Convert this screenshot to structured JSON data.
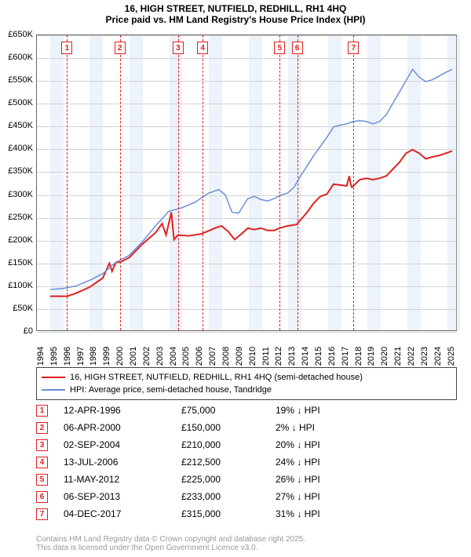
{
  "title": {
    "line1": "16, HIGH STREET, NUTFIELD, REDHILL, RH1 4HQ",
    "line2": "Price paid vs. HM Land Registry's House Price Index (HPI)",
    "fontsize": 12
  },
  "chart": {
    "type": "line",
    "background_color": "#ffffff",
    "border_color": "#666666",
    "grid_color": "#d3d3d3",
    "shade_color": "rgba(200,220,240,0.35)",
    "shade_years": [
      1995,
      1998,
      2001,
      2004,
      2007,
      2010,
      2013,
      2016,
      2019,
      2022,
      2025
    ],
    "x_min": 1994,
    "x_max": 2025.8,
    "y_min": 0,
    "y_max": 650000,
    "y_ticks": [
      0,
      50000,
      100000,
      150000,
      200000,
      250000,
      300000,
      350000,
      400000,
      450000,
      500000,
      550000,
      600000,
      650000
    ],
    "y_tick_labels": [
      "£0",
      "£50K",
      "£100K",
      "£150K",
      "£200K",
      "£250K",
      "£300K",
      "£350K",
      "£400K",
      "£450K",
      "£500K",
      "£550K",
      "£600K",
      "£650K"
    ],
    "x_ticks": [
      1994,
      1995,
      1996,
      1997,
      1998,
      1999,
      2000,
      2001,
      2002,
      2003,
      2004,
      2005,
      2006,
      2007,
      2008,
      2009,
      2010,
      2011,
      2012,
      2013,
      2014,
      2015,
      2016,
      2017,
      2018,
      2019,
      2020,
      2021,
      2022,
      2023,
      2024,
      2025
    ],
    "label_fontsize": 11,
    "series": [
      {
        "name": "price_paid",
        "color": "#e02020",
        "width": 2,
        "points": [
          [
            1995.0,
            75000
          ],
          [
            1996.3,
            75000
          ],
          [
            1996.3,
            75000
          ],
          [
            1997.0,
            82000
          ],
          [
            1998.0,
            95000
          ],
          [
            1999.0,
            115000
          ],
          [
            1999.5,
            148000
          ],
          [
            1999.7,
            130000
          ],
          [
            2000.0,
            150000
          ],
          [
            2000.3,
            150000
          ],
          [
            2001.0,
            160000
          ],
          [
            2002.0,
            190000
          ],
          [
            2003.0,
            215000
          ],
          [
            2003.5,
            235000
          ],
          [
            2003.8,
            210000
          ],
          [
            2004.2,
            260000
          ],
          [
            2004.4,
            200000
          ],
          [
            2004.7,
            210000
          ],
          [
            2005.5,
            208000
          ],
          [
            2006.5,
            212500
          ],
          [
            2007.5,
            225000
          ],
          [
            2008.0,
            230000
          ],
          [
            2008.5,
            218000
          ],
          [
            2009.0,
            200000
          ],
          [
            2009.5,
            212000
          ],
          [
            2010.0,
            225000
          ],
          [
            2010.5,
            222000
          ],
          [
            2011.0,
            225000
          ],
          [
            2011.5,
            220000
          ],
          [
            2012.0,
            220000
          ],
          [
            2012.4,
            225000
          ],
          [
            2013.0,
            230000
          ],
          [
            2013.7,
            233000
          ],
          [
            2014.5,
            260000
          ],
          [
            2015.0,
            280000
          ],
          [
            2015.5,
            295000
          ],
          [
            2016.0,
            300000
          ],
          [
            2016.5,
            322000
          ],
          [
            2017.0,
            320000
          ],
          [
            2017.5,
            318000
          ],
          [
            2017.7,
            340000
          ],
          [
            2017.8,
            322000
          ],
          [
            2017.9,
            315000
          ],
          [
            2018.5,
            332000
          ],
          [
            2019.0,
            335000
          ],
          [
            2019.5,
            332000
          ],
          [
            2020.0,
            335000
          ],
          [
            2020.5,
            340000
          ],
          [
            2021.0,
            355000
          ],
          [
            2021.5,
            370000
          ],
          [
            2022.0,
            390000
          ],
          [
            2022.5,
            398000
          ],
          [
            2023.0,
            390000
          ],
          [
            2023.5,
            378000
          ],
          [
            2024.0,
            382000
          ],
          [
            2024.5,
            385000
          ],
          [
            2025.0,
            390000
          ],
          [
            2025.5,
            395000
          ]
        ]
      },
      {
        "name": "hpi",
        "color": "#6a8fd8",
        "width": 1.5,
        "points": [
          [
            1995.0,
            90000
          ],
          [
            1996.0,
            92000
          ],
          [
            1997.0,
            98000
          ],
          [
            1998.0,
            110000
          ],
          [
            1999.0,
            125000
          ],
          [
            2000.0,
            150000
          ],
          [
            2001.0,
            165000
          ],
          [
            2002.0,
            195000
          ],
          [
            2003.0,
            230000
          ],
          [
            2004.0,
            262000
          ],
          [
            2005.0,
            270000
          ],
          [
            2006.0,
            282000
          ],
          [
            2007.0,
            302000
          ],
          [
            2007.8,
            310000
          ],
          [
            2008.3,
            298000
          ],
          [
            2008.8,
            260000
          ],
          [
            2009.3,
            258000
          ],
          [
            2010.0,
            290000
          ],
          [
            2010.5,
            295000
          ],
          [
            2011.0,
            288000
          ],
          [
            2011.5,
            285000
          ],
          [
            2012.0,
            290000
          ],
          [
            2012.5,
            298000
          ],
          [
            2013.0,
            302000
          ],
          [
            2013.5,
            315000
          ],
          [
            2014.0,
            340000
          ],
          [
            2014.5,
            362000
          ],
          [
            2015.0,
            385000
          ],
          [
            2015.5,
            405000
          ],
          [
            2016.0,
            425000
          ],
          [
            2016.5,
            448000
          ],
          [
            2017.0,
            452000
          ],
          [
            2017.5,
            455000
          ],
          [
            2018.0,
            460000
          ],
          [
            2018.5,
            462000
          ],
          [
            2019.0,
            460000
          ],
          [
            2019.5,
            455000
          ],
          [
            2020.0,
            460000
          ],
          [
            2020.5,
            475000
          ],
          [
            2021.0,
            500000
          ],
          [
            2021.5,
            525000
          ],
          [
            2022.0,
            550000
          ],
          [
            2022.5,
            575000
          ],
          [
            2023.0,
            558000
          ],
          [
            2023.5,
            548000
          ],
          [
            2024.0,
            552000
          ],
          [
            2024.5,
            560000
          ],
          [
            2025.0,
            568000
          ],
          [
            2025.5,
            575000
          ]
        ]
      }
    ],
    "events": [
      {
        "n": "1",
        "x": 1996.28,
        "date": "12-APR-1996",
        "price": "£75,000",
        "diff": "19% ↓ HPI"
      },
      {
        "n": "2",
        "x": 2000.27,
        "date": "06-APR-2000",
        "price": "£150,000",
        "diff": "2% ↓ HPI"
      },
      {
        "n": "3",
        "x": 2004.67,
        "date": "02-SEP-2004",
        "price": "£210,000",
        "diff": "20% ↓ HPI"
      },
      {
        "n": "4",
        "x": 2006.53,
        "date": "13-JUL-2006",
        "price": "£212,500",
        "diff": "24% ↓ HPI"
      },
      {
        "n": "5",
        "x": 2012.36,
        "date": "11-MAY-2012",
        "price": "£225,000",
        "diff": "26% ↓ HPI"
      },
      {
        "n": "6",
        "x": 2013.68,
        "date": "06-SEP-2013",
        "price": "£233,000",
        "diff": "27% ↓ HPI"
      },
      {
        "n": "7",
        "x": 2017.93,
        "date": "04-DEC-2017",
        "price": "£315,000",
        "diff": "31% ↓ HPI"
      }
    ],
    "event_color": "#e02020"
  },
  "legend": {
    "items": [
      {
        "color": "#e02020",
        "width": 2,
        "label": "16, HIGH STREET, NUTFIELD, REDHILL, RH1 4HQ (semi-detached house)"
      },
      {
        "color": "#6a8fd8",
        "width": 1.5,
        "label": "HPI: Average price, semi-detached house, Tandridge"
      }
    ]
  },
  "footer": {
    "line1": "Contains HM Land Registry data © Crown copyright and database right 2025.",
    "line2": "This data is licensed under the Open Government Licence v3.0."
  }
}
